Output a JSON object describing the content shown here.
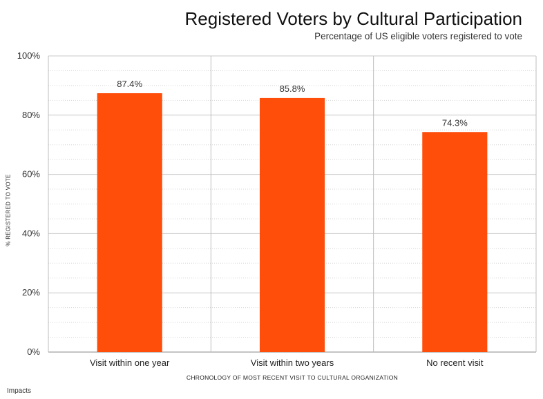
{
  "chart_data": {
    "type": "bar",
    "title": "Registered Voters by Cultural Participation",
    "subtitle": "Percentage of US eligible voters registered to vote",
    "xlabel": "CHRONOLOGY OF MOST RECENT VISIT TO CULTURAL ORGANIZATION",
    "ylabel": "% REGISTERED TO VOTE",
    "categories": [
      "Visit within one year",
      "Visit within two years",
      "No recent visit"
    ],
    "values": [
      87.4,
      85.8,
      74.3
    ],
    "data_labels": [
      "87.4%",
      "85.8%",
      "74.3%"
    ],
    "ylim": [
      0,
      100
    ],
    "yticks": [
      0,
      20,
      40,
      60,
      80,
      100
    ],
    "ytick_labels": [
      "0%",
      "20%",
      "40%",
      "60%",
      "80%",
      "100%"
    ],
    "grid": true,
    "bar_color": "#ff4d0a"
  },
  "brand": "Impacts"
}
